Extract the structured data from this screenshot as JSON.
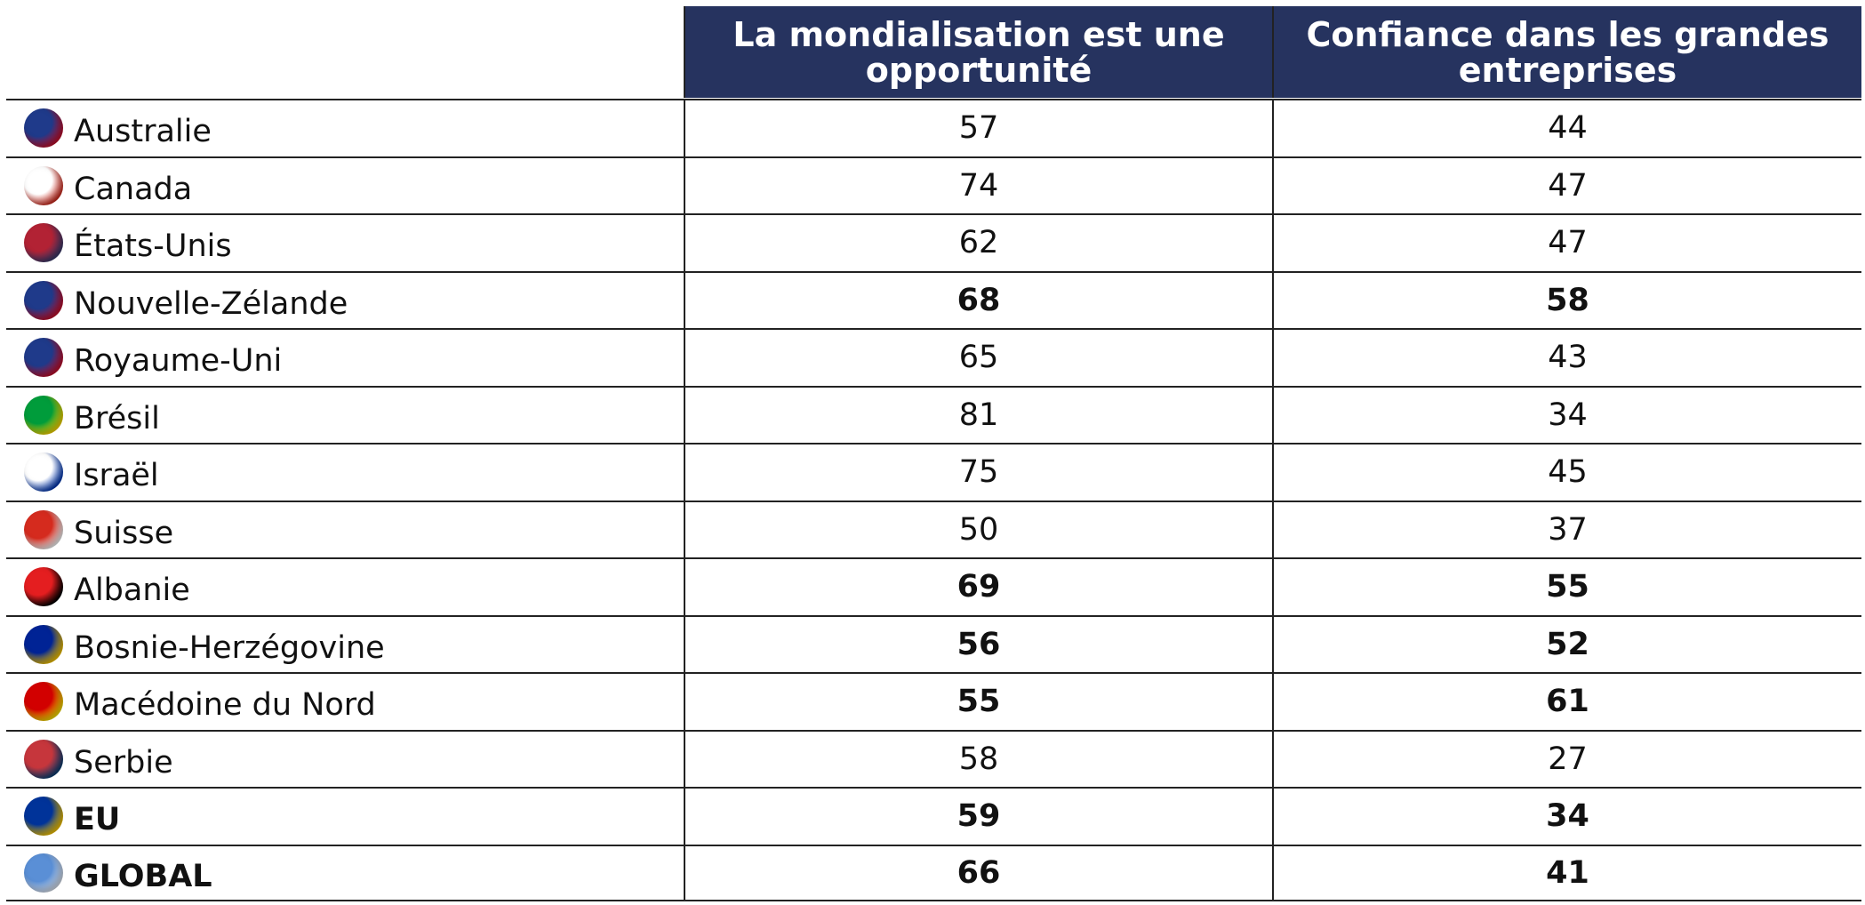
{
  "table": {
    "headers": [
      "La mondialisation est une opportunité",
      "Confiance dans les grandes entreprises"
    ],
    "header_color": "#26335f",
    "rows": [
      {
        "country": "Australie",
        "values": [
          57,
          44
        ],
        "flag": [
          "#1f3a8a",
          "#c8102e"
        ]
      },
      {
        "country": "Canada",
        "values": [
          74,
          47
        ],
        "flag": [
          "#ffffff",
          "#d52b1e"
        ]
      },
      {
        "country": "États-Unis",
        "values": [
          62,
          47
        ],
        "flag": [
          "#b22234",
          "#3c3b6e"
        ]
      },
      {
        "country": "Nouvelle-Zélande",
        "values": [
          68,
          58
        ],
        "bold_values": true,
        "flag": [
          "#1f3a8a",
          "#c8102e"
        ]
      },
      {
        "country": "Royaume-Uni",
        "values": [
          65,
          43
        ],
        "flag": [
          "#1f3a8a",
          "#c8102e"
        ]
      },
      {
        "country": "Brésil",
        "values": [
          81,
          34
        ],
        "flag": [
          "#009c3b",
          "#ffdf00"
        ]
      },
      {
        "country": "Israël",
        "values": [
          75,
          45
        ],
        "flag": [
          "#ffffff",
          "#0038b8"
        ]
      },
      {
        "country": "Suisse",
        "values": [
          50,
          37
        ],
        "flag": [
          "#d52b1e",
          "#ffffff"
        ]
      },
      {
        "country": "Albanie",
        "values": [
          69,
          55
        ],
        "bold_values": true,
        "flag": [
          "#e41e20",
          "#000000"
        ]
      },
      {
        "country": "Bosnie-Herzégovine",
        "values": [
          56,
          52
        ],
        "bold_values": true,
        "flag": [
          "#002395",
          "#fecb00"
        ]
      },
      {
        "country": "Macédoine du Nord",
        "values": [
          55,
          61
        ],
        "bold_values": true,
        "flag": [
          "#d20000",
          "#ffe600"
        ]
      },
      {
        "country": "Serbie",
        "values": [
          58,
          27
        ],
        "flag": [
          "#c6363c",
          "#0c4076"
        ]
      },
      {
        "country": "EU",
        "values": [
          59,
          34
        ],
        "bold_values": true,
        "bold_country": true,
        "flag": [
          "#003399",
          "#ffcc00"
        ]
      },
      {
        "country": "GLOBAL",
        "values": [
          66,
          41
        ],
        "bold_values": true,
        "bold_country": true,
        "flag": [
          "#5a8fd6",
          "#dfe9f7"
        ]
      }
    ]
  }
}
